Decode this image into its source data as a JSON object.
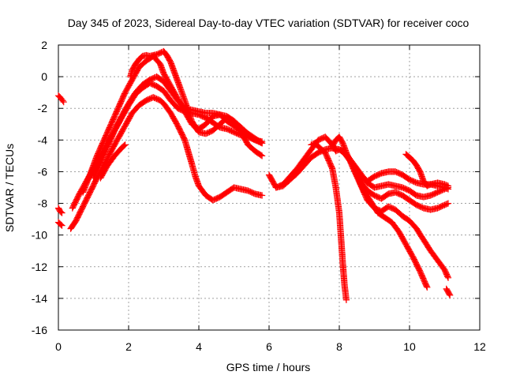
{
  "chart_data": {
    "type": "scatter",
    "title": "Day 345 of 2023, Sidereal Day-to-day VTEC variation (SDTVAR) for receiver coco",
    "xlabel": "GPS time / hours",
    "ylabel": "SDTVAR / TECUs",
    "xlim": [
      0,
      12
    ],
    "ylim": [
      -16,
      2
    ],
    "xticks": [
      0,
      2,
      4,
      6,
      8,
      10,
      12
    ],
    "yticks": [
      -16,
      -14,
      -12,
      -10,
      -8,
      -6,
      -4,
      -2,
      0,
      2
    ],
    "grid": true,
    "marker": "plus",
    "color": "#ff0000",
    "series": [
      {
        "name": "s1",
        "x": [
          0.0,
          0.05,
          0.1,
          0.15
        ],
        "y": [
          -1.2,
          -1.3,
          -1.45,
          -1.6
        ]
      },
      {
        "name": "s2",
        "x": [
          0.0,
          0.05,
          0.1
        ],
        "y": [
          -8.3,
          -8.5,
          -8.6
        ]
      },
      {
        "name": "s3",
        "x": [
          0.0,
          0.05,
          0.1
        ],
        "y": [
          -9.2,
          -9.3,
          -9.4
        ]
      },
      {
        "name": "s4",
        "x": [
          0.35,
          0.5,
          0.7,
          0.9,
          1.1,
          1.3,
          1.5,
          1.7,
          1.9,
          2.1,
          2.3,
          2.5,
          2.7,
          2.9,
          3.0,
          3.2,
          3.4,
          3.6,
          3.8,
          3.9,
          4.0,
          4.2,
          4.4,
          4.6,
          4.8,
          5.0,
          5.2,
          5.4,
          5.6,
          5.8
        ],
        "y": [
          -9.6,
          -9.1,
          -8.2,
          -7.3,
          -6.4,
          -5.6,
          -4.7,
          -3.9,
          -3.1,
          -2.3,
          -1.8,
          -1.5,
          -1.3,
          -1.5,
          -1.7,
          -2.3,
          -3.1,
          -4.0,
          -5.5,
          -6.3,
          -6.9,
          -7.5,
          -7.8,
          -7.6,
          -7.3,
          -7.0,
          -7.1,
          -7.2,
          -7.4,
          -7.5
        ]
      },
      {
        "name": "s5",
        "x": [
          0.4,
          0.6,
          0.8,
          1.0,
          1.2,
          1.4,
          1.6,
          1.8,
          2.0,
          2.2,
          2.4,
          2.6,
          2.8,
          3.0,
          3.2,
          3.4,
          3.6,
          3.8,
          4.0,
          4.2,
          4.4,
          4.6,
          4.8,
          5.0,
          5.2,
          5.4,
          5.6,
          5.8
        ],
        "y": [
          -8.3,
          -7.4,
          -6.6,
          -5.8,
          -5.0,
          -4.2,
          -3.4,
          -2.6,
          -1.8,
          -1.1,
          -0.7,
          -0.4,
          -0.6,
          -0.9,
          -1.5,
          -2.0,
          -2.2,
          -2.3,
          -2.4,
          -2.6,
          -2.9,
          -3.2,
          -3.3,
          -3.5,
          -3.7,
          -3.8,
          -4.0,
          -4.1
        ]
      },
      {
        "name": "s6",
        "x": [
          0.7,
          0.9,
          1.1,
          1.3,
          1.5,
          1.7,
          1.9,
          2.1,
          2.3,
          2.5,
          2.7,
          2.9,
          3.0,
          3.2,
          3.4,
          3.6,
          3.8,
          4.0,
          4.2,
          4.4,
          4.6,
          4.8,
          5.0,
          5.2,
          5.4,
          5.6,
          5.8
        ],
        "y": [
          -7.3,
          -6.2,
          -5.0,
          -4.0,
          -3.0,
          -2.0,
          -1.0,
          -0.2,
          0.6,
          1.0,
          1.3,
          0.8,
          0.2,
          -0.6,
          -1.4,
          -2.2,
          -3.0,
          -3.3,
          -3.0,
          -2.5,
          -2.4,
          -2.8,
          -3.1,
          -3.4,
          -3.7,
          -4.0,
          -4.2
        ]
      },
      {
        "name": "s7",
        "x": [
          2.05,
          2.1,
          2.2,
          2.3,
          2.4,
          2.5,
          2.6,
          2.7,
          2.8,
          2.9,
          3.0,
          3.1,
          3.2,
          3.3,
          3.4,
          3.5,
          3.6,
          3.7,
          3.8,
          3.9,
          4.0,
          4.2,
          4.4,
          4.6,
          4.8,
          5.0,
          5.2,
          5.4,
          5.6,
          5.8
        ],
        "y": [
          0.0,
          0.4,
          0.8,
          1.1,
          1.3,
          1.35,
          1.3,
          1.35,
          1.4,
          1.5,
          1.6,
          1.3,
          0.9,
          0.3,
          -0.3,
          -0.9,
          -1.5,
          -2.2,
          -2.8,
          -3.2,
          -3.5,
          -3.6,
          -3.4,
          -3.0,
          -2.6,
          -2.8,
          -3.5,
          -4.3,
          -4.7,
          -5.0
        ]
      },
      {
        "name": "s8",
        "x": [
          1.0,
          1.2,
          1.4,
          1.6,
          1.8,
          2.0,
          2.2,
          2.4,
          2.6,
          2.8,
          3.0,
          3.2,
          3.4,
          3.6,
          3.8,
          4.0,
          4.2,
          4.4,
          4.6,
          4.8,
          5.0,
          5.2,
          5.4,
          5.6,
          5.8
        ],
        "y": [
          -6.4,
          -5.4,
          -4.4,
          -3.4,
          -2.5,
          -1.7,
          -1.0,
          -0.5,
          -0.2,
          0.0,
          -0.3,
          -0.9,
          -1.5,
          -2.0,
          -2.1,
          -2.2,
          -2.3,
          -2.3,
          -2.4,
          -2.5,
          -2.8,
          -3.2,
          -3.6,
          -3.9,
          -4.2
        ]
      },
      {
        "name": "s9",
        "x": [
          1.2,
          1.4,
          1.6,
          1.8,
          1.9
        ],
        "y": [
          -6.4,
          -5.6,
          -5.0,
          -4.5,
          -4.3
        ]
      },
      {
        "name": "s10",
        "x": [
          6.0,
          6.1,
          6.2,
          6.4,
          6.6,
          6.8,
          7.0,
          7.2,
          7.4,
          7.6,
          7.8,
          7.9,
          8.0,
          8.1,
          8.2,
          8.3,
          8.4,
          8.6,
          8.8,
          9.0,
          9.2,
          9.4,
          9.6,
          9.8,
          10.0,
          10.2,
          10.4,
          10.6,
          10.8,
          11.0,
          11.1
        ],
        "y": [
          -6.2,
          -6.6,
          -7.0,
          -6.8,
          -6.3,
          -5.8,
          -5.2,
          -4.6,
          -4.0,
          -3.8,
          -4.3,
          -4.7,
          -4.6,
          -4.7,
          -5.0,
          -5.3,
          -5.6,
          -6.2,
          -6.6,
          -6.3,
          -6.1,
          -6.0,
          -6.0,
          -6.2,
          -6.5,
          -6.7,
          -6.8,
          -6.8,
          -6.9,
          -7.0,
          -7.1
        ]
      },
      {
        "name": "s11",
        "x": [
          6.2,
          6.4,
          6.6,
          6.8,
          7.0,
          7.2,
          7.4,
          7.6,
          7.8,
          8.0,
          8.2,
          8.4,
          8.6,
          8.8,
          9.0,
          9.2,
          9.4,
          9.6,
          9.8,
          10.0,
          10.2,
          10.4,
          10.6,
          10.8,
          11.0,
          11.1
        ],
        "y": [
          -7.0,
          -6.9,
          -6.5,
          -6.1,
          -5.6,
          -5.1,
          -4.8,
          -4.6,
          -4.5,
          -4.6,
          -4.9,
          -5.5,
          -6.1,
          -6.7,
          -7.0,
          -6.9,
          -6.8,
          -6.9,
          -7.0,
          -7.2,
          -7.5,
          -7.6,
          -7.5,
          -7.3,
          -7.1,
          -7.0
        ]
      },
      {
        "name": "s12",
        "x": [
          7.2,
          7.3,
          7.4,
          7.6,
          7.8,
          7.9,
          8.0,
          8.05,
          8.1,
          8.15,
          8.2
        ],
        "y": [
          -4.3,
          -4.2,
          -4.4,
          -4.8,
          -5.8,
          -7.0,
          -8.6,
          -10.2,
          -11.8,
          -13.2,
          -14.1
        ]
      },
      {
        "name": "s13",
        "x": [
          7.8,
          7.9,
          8.0,
          8.1,
          8.2,
          8.3,
          8.4,
          8.6,
          8.8,
          9.0,
          9.2,
          9.4,
          9.6,
          9.8,
          10.0,
          10.2,
          10.4,
          10.6,
          10.8,
          11.0,
          11.1
        ],
        "y": [
          -4.4,
          -4.0,
          -3.8,
          -4.2,
          -4.8,
          -5.3,
          -5.8,
          -6.6,
          -7.2,
          -7.5,
          -7.7,
          -7.4,
          -7.3,
          -7.5,
          -7.8,
          -8.1,
          -8.3,
          -8.4,
          -8.3,
          -8.1,
          -8.0
        ]
      },
      {
        "name": "s14",
        "x": [
          8.4,
          8.6,
          8.8,
          9.0,
          9.2,
          9.4,
          9.6,
          9.8,
          10.0,
          10.2,
          10.4,
          10.6,
          10.8,
          11.0,
          11.1
        ],
        "y": [
          -5.8,
          -6.8,
          -7.8,
          -8.3,
          -8.5,
          -8.2,
          -8.4,
          -8.8,
          -9.1,
          -9.6,
          -10.3,
          -11.0,
          -11.6,
          -12.2,
          -12.7
        ]
      },
      {
        "name": "s15",
        "x": [
          8.5,
          8.7,
          8.9,
          9.1,
          9.3,
          9.5,
          9.7,
          9.9,
          10.1,
          10.3,
          10.5
        ],
        "y": [
          -6.2,
          -7.2,
          -7.9,
          -8.6,
          -8.9,
          -9.2,
          -9.8,
          -10.6,
          -11.4,
          -12.3,
          -13.3
        ]
      },
      {
        "name": "s16",
        "x": [
          9.9,
          10.0,
          10.1,
          10.2,
          10.3,
          10.4,
          10.5,
          10.6,
          10.8,
          11.0,
          11.1
        ],
        "y": [
          -4.9,
          -5.1,
          -5.3,
          -5.6,
          -6.0,
          -6.6,
          -6.9,
          -6.8,
          -6.7,
          -6.8,
          -6.9
        ]
      },
      {
        "name": "s17",
        "x": [
          11.05,
          11.1,
          11.15
        ],
        "y": [
          -13.4,
          -13.6,
          -13.8
        ]
      }
    ]
  }
}
